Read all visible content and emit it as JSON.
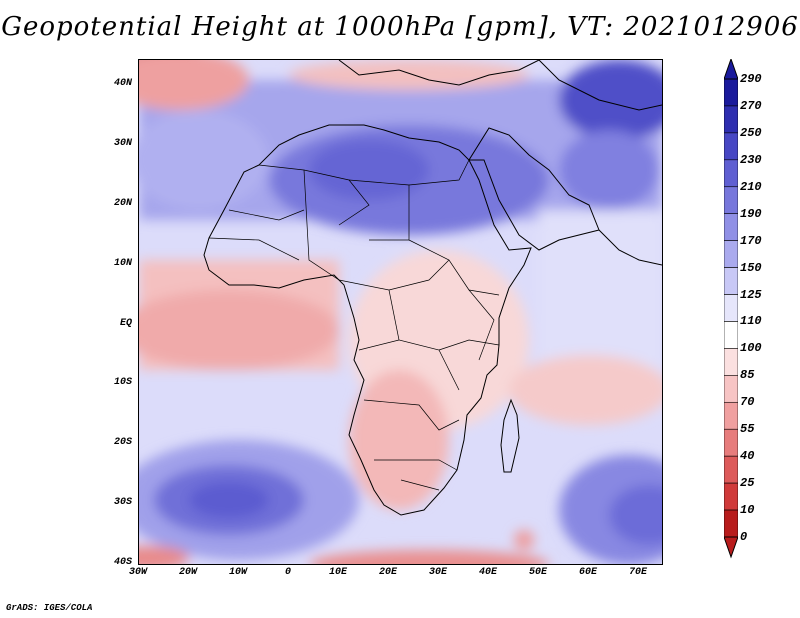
{
  "title": "Geopotential Height at 1000hPa [gpm], VT: 2021012906",
  "credit": "GrADS: IGES/COLA",
  "map": {
    "lat_labels": [
      "40N",
      "30N",
      "20N",
      "10N",
      "EQ",
      "10S",
      "20S",
      "30S",
      "40S"
    ],
    "lon_labels": [
      "30W",
      "20W",
      "10W",
      "0",
      "10E",
      "20E",
      "30E",
      "40E",
      "50E",
      "60E",
      "70E"
    ],
    "lat_range": [
      -40,
      45
    ],
    "lon_range": [
      -30,
      75
    ]
  },
  "colorbar": {
    "levels": [
      "290",
      "270",
      "250",
      "230",
      "210",
      "190",
      "170",
      "150",
      "125",
      "110",
      "100",
      "85",
      "70",
      "55",
      "40",
      "25",
      "10",
      "0"
    ],
    "colors": [
      "#1a1a9c",
      "#2e2eb0",
      "#4747c4",
      "#5f5fd2",
      "#7777dc",
      "#9090e6",
      "#aaaaee",
      "#c8c8f6",
      "#e6e6fb",
      "#ffffff",
      "#fbe0e0",
      "#f7c4c4",
      "#f0a0a0",
      "#e77c7c",
      "#dd5a5a",
      "#d03a3a",
      "#b81c1c"
    ]
  }
}
